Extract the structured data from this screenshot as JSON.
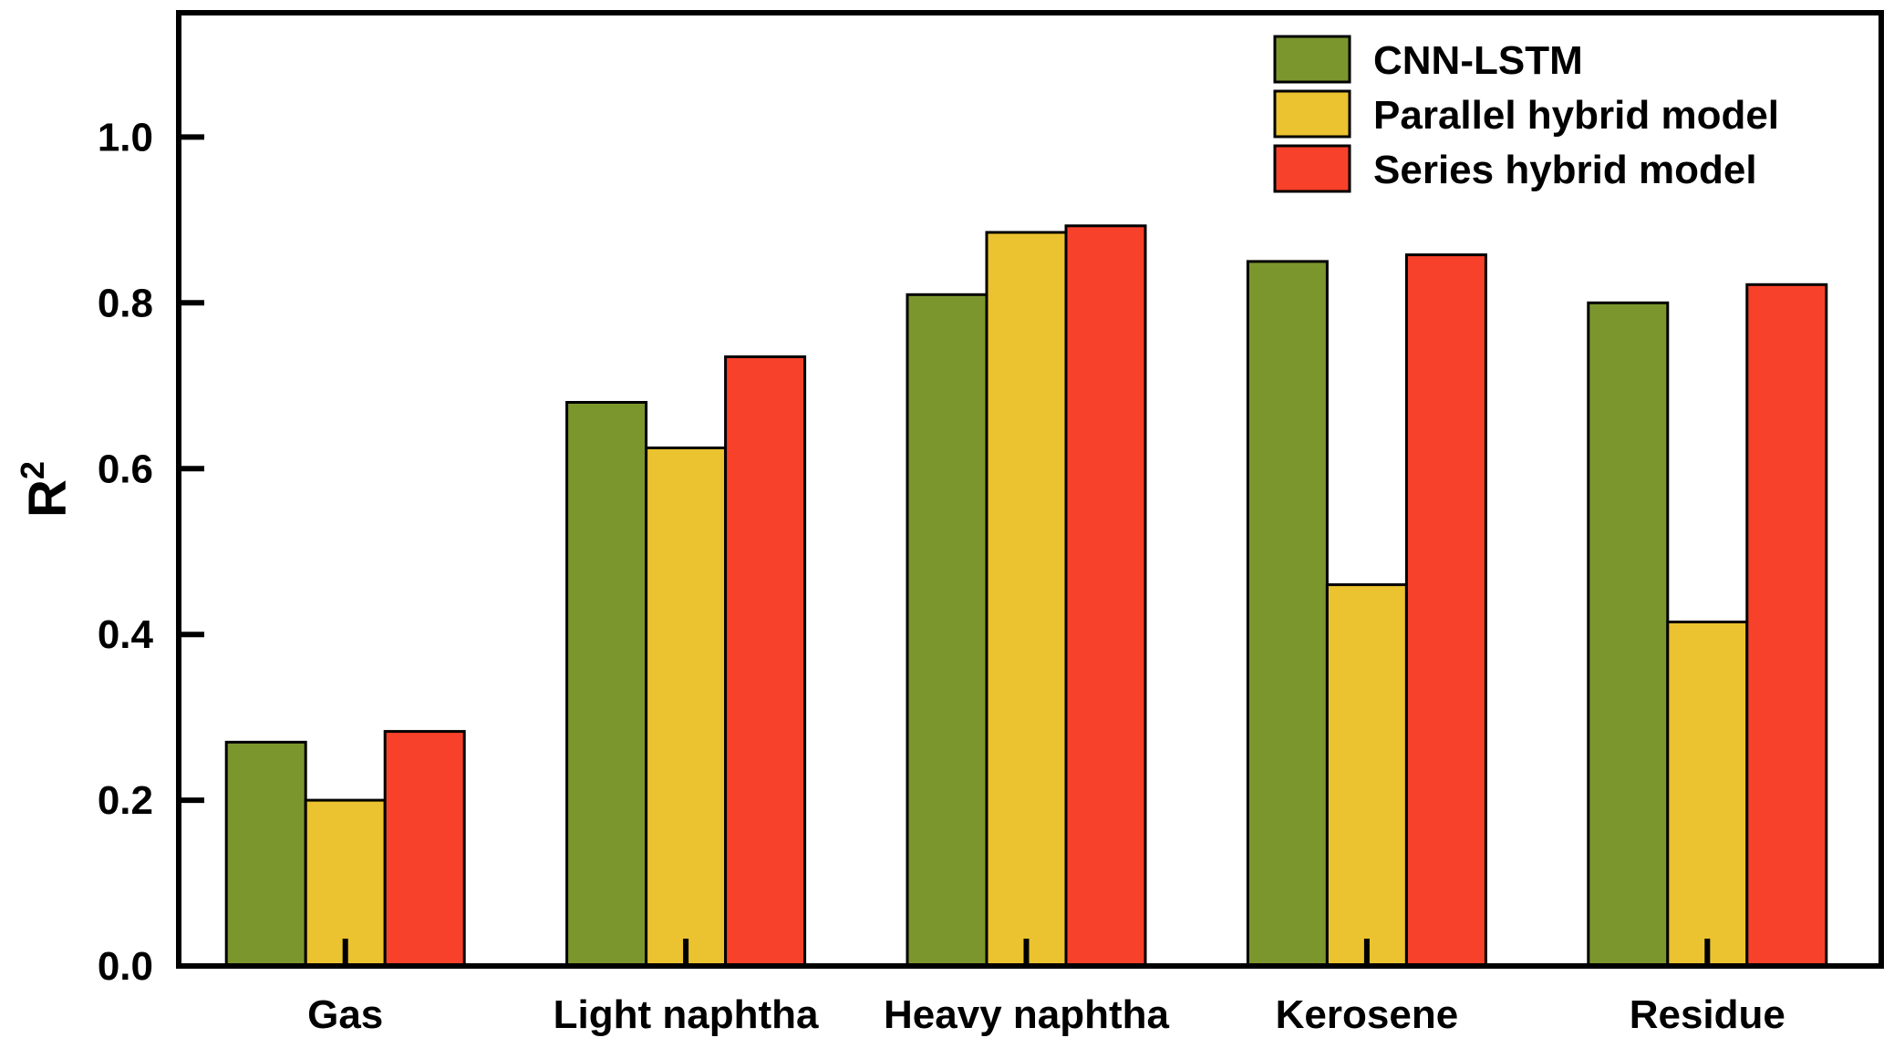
{
  "chart_data": {
    "type": "bar",
    "title": "",
    "xlabel": "",
    "ylabel": "R",
    "ylabel_superscript": "2",
    "categories": [
      "Gas",
      "Light naphtha",
      "Heavy naphtha",
      "Kerosene",
      "Residue"
    ],
    "series": [
      {
        "name": "CNN-LSTM",
        "color": "#7b962d",
        "values": [
          0.27,
          0.68,
          0.81,
          0.85,
          0.8
        ]
      },
      {
        "name": "Parallel hybrid model",
        "color": "#ebc22f",
        "values": [
          0.2,
          0.625,
          0.885,
          0.46,
          0.415
        ]
      },
      {
        "name": "Series hybrid model",
        "color": "#f8412a",
        "values": [
          0.283,
          0.735,
          0.893,
          0.858,
          0.822
        ]
      }
    ],
    "ylim": [
      0.0,
      1.15
    ],
    "yticks": [
      "0.0",
      "0.2",
      "0.4",
      "0.6",
      "0.8",
      "1.0"
    ],
    "ytick_values": [
      0.0,
      0.2,
      0.4,
      0.6,
      0.8,
      1.0
    ],
    "grid": false,
    "legend_position": "top-right"
  }
}
